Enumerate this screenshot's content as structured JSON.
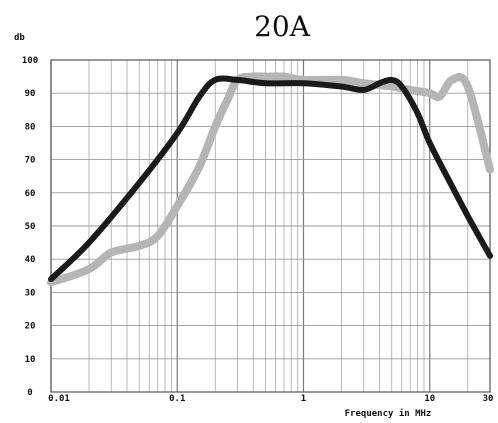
{
  "chart_data": {
    "type": "line",
    "title": "20A",
    "ylabel": "db",
    "xlabel": "Frequency in MHz",
    "x_scale": "log",
    "xlim": [
      0.01,
      30
    ],
    "ylim": [
      0,
      100
    ],
    "grid": true,
    "x_tick_labels": [
      "0.01",
      "0.1",
      "1",
      "10",
      "30"
    ],
    "x_tick_values": [
      0.01,
      0.1,
      1,
      10,
      30
    ],
    "y_tick_labels": [
      "0",
      "10",
      "20",
      "30",
      "40",
      "50",
      "60",
      "70",
      "80",
      "90",
      "100"
    ],
    "y_tick_values": [
      0,
      10,
      20,
      30,
      40,
      50,
      60,
      70,
      80,
      90,
      100
    ],
    "series": [
      {
        "color": "#1a1a1a",
        "x": [
          0.01,
          0.02,
          0.05,
          0.1,
          0.15,
          0.2,
          0.3,
          0.5,
          1,
          2,
          3,
          4,
          5,
          6,
          8,
          10,
          15,
          20,
          30
        ],
        "y": [
          34,
          45,
          63,
          78,
          89,
          94,
          94,
          93,
          93,
          92,
          91,
          93,
          94,
          92,
          84,
          75,
          62,
          53,
          41
        ]
      },
      {
        "color": "#b5b5b5",
        "x": [
          0.01,
          0.02,
          0.03,
          0.05,
          0.07,
          0.1,
          0.15,
          0.2,
          0.25,
          0.3,
          0.4,
          0.5,
          0.7,
          1,
          2,
          3,
          5,
          7,
          10,
          12,
          15,
          20,
          30
        ],
        "y": [
          33,
          37,
          42,
          44,
          47,
          56,
          68,
          80,
          88,
          94,
          95,
          95,
          95,
          94,
          94,
          93,
          92,
          91,
          90,
          89,
          94,
          92,
          67
        ]
      }
    ]
  }
}
